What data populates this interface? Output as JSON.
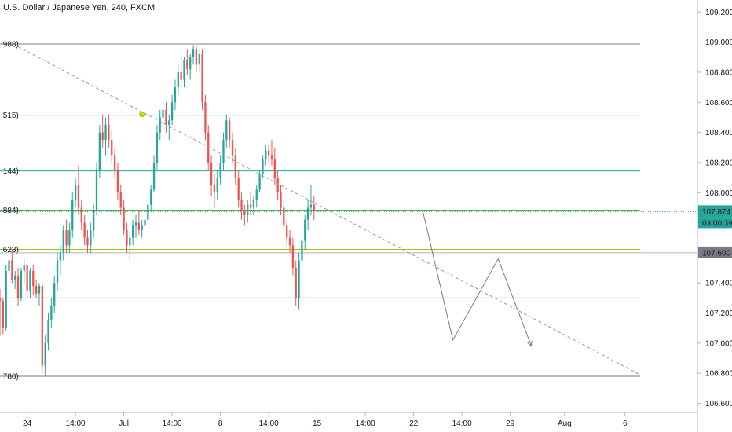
{
  "header": {
    "title": "U.S. Dollar / Japanese Yen, 240, FXCM"
  },
  "colors": {
    "up": "#26a69a",
    "down": "#ef5350",
    "grid": "#e6e6e6",
    "axis": "#b2b5be",
    "price_badge": "#26a69a",
    "level_badge": "#787b86"
  },
  "chart_data": {
    "type": "candlestick",
    "title": "U.S. Dollar / Japanese Yen, 240, FXCM",
    "ylim": [
      106.54,
      109.28
    ],
    "y_ticks": [
      {
        "v": 109.2,
        "label": "109.200"
      },
      {
        "v": 109.0,
        "label": "109.000"
      },
      {
        "v": 108.8,
        "label": "108.800"
      },
      {
        "v": 108.6,
        "label": "108.600"
      },
      {
        "v": 108.4,
        "label": "108.400"
      },
      {
        "v": 108.2,
        "label": "108.200"
      },
      {
        "v": 108.0,
        "label": "108.000"
      },
      {
        "v": 107.4,
        "label": "107.400"
      },
      {
        "v": 107.2,
        "label": "107.200"
      },
      {
        "v": 107.0,
        "label": "107.000"
      },
      {
        "v": 106.8,
        "label": "106.800"
      },
      {
        "v": 106.6,
        "label": "106.600"
      }
    ],
    "x_ticks": [
      {
        "i": 9,
        "label": "24"
      },
      {
        "i": 25,
        "label": "14:00"
      },
      {
        "i": 41,
        "label": "Jul"
      },
      {
        "i": 57,
        "label": "14:00"
      },
      {
        "i": 73,
        "label": "8"
      },
      {
        "i": 89,
        "label": "14:00"
      },
      {
        "i": 105,
        "label": "15"
      },
      {
        "i": 121,
        "label": "14:00"
      },
      {
        "i": 137,
        "label": "22"
      },
      {
        "i": 153,
        "label": "14:00"
      },
      {
        "i": 169,
        "label": "29"
      },
      {
        "i": 187,
        "label": "Aug"
      },
      {
        "i": 207,
        "label": "6"
      }
    ],
    "x_range": [
      0,
      231
    ],
    "levels": [
      {
        "name": "fib-108988",
        "v": 108.988,
        "label": ".988)",
        "color": "#787b86"
      },
      {
        "name": "fib-108515",
        "v": 108.515,
        "label": ".515)",
        "color": "#00bcd4"
      },
      {
        "name": "fib-108144",
        "v": 108.144,
        "label": ".144)",
        "color": "#26a69a"
      },
      {
        "name": "fib-107884",
        "v": 107.884,
        "label": ".884)",
        "color": "#4caf50"
      },
      {
        "name": "fib-107623",
        "v": 107.623,
        "label": ".623)",
        "color": "#9bc700"
      },
      {
        "name": "fib-107300",
        "v": 107.3,
        "label": "",
        "color": "#e53935"
      },
      {
        "name": "fib-106780",
        "v": 106.78,
        "label": ".780)",
        "color": "#787b86"
      }
    ],
    "level_x_end": 212,
    "extra_hline": {
      "v": 107.6,
      "color": "#b2b5be"
    },
    "current_price": {
      "v": 107.874,
      "label": "107.874",
      "countdown": "03:00:39"
    },
    "level_badge": {
      "v": 107.6,
      "label": "107.600"
    },
    "trendline": {
      "x0": 6,
      "y0": 108.97,
      "x1": 212,
      "y1": 106.79
    },
    "marker": {
      "i": 47,
      "v": 108.52
    },
    "projection": [
      {
        "i": 140,
        "v": 107.88
      },
      {
        "i": 150,
        "v": 107.02
      },
      {
        "i": 165,
        "v": 107.56
      },
      {
        "i": 176,
        "v": 106.98
      }
    ],
    "ohlc": [
      [
        107.3,
        107.36,
        107.05,
        107.28
      ],
      [
        107.28,
        107.3,
        107.06,
        107.1
      ],
      [
        107.1,
        107.52,
        107.08,
        107.48
      ],
      [
        107.48,
        107.58,
        107.4,
        107.55
      ],
      [
        107.55,
        107.62,
        107.4,
        107.42
      ],
      [
        107.42,
        107.48,
        107.36,
        107.45
      ],
      [
        107.45,
        107.5,
        107.25,
        107.3
      ],
      [
        107.3,
        107.5,
        107.28,
        107.48
      ],
      [
        107.48,
        107.56,
        107.4,
        107.52
      ],
      [
        107.52,
        107.56,
        107.3,
        107.35
      ],
      [
        107.35,
        107.5,
        107.3,
        107.48
      ],
      [
        107.48,
        107.52,
        107.32,
        107.38
      ],
      [
        107.38,
        107.42,
        107.3,
        107.33
      ],
      [
        107.33,
        107.4,
        107.25,
        107.38
      ],
      [
        107.38,
        107.4,
        106.8,
        106.85
      ],
      [
        106.85,
        107.05,
        106.78,
        107.0
      ],
      [
        107.0,
        107.2,
        106.95,
        107.15
      ],
      [
        107.15,
        107.3,
        107.1,
        107.25
      ],
      [
        107.25,
        107.45,
        107.2,
        107.4
      ],
      [
        107.4,
        107.6,
        107.35,
        107.55
      ],
      [
        107.55,
        107.65,
        107.45,
        107.6
      ],
      [
        107.6,
        107.78,
        107.55,
        107.75
      ],
      [
        107.75,
        107.82,
        107.6,
        107.65
      ],
      [
        107.65,
        107.8,
        107.6,
        107.75
      ],
      [
        107.75,
        108.0,
        107.7,
        107.95
      ],
      [
        107.95,
        108.1,
        107.9,
        108.05
      ],
      [
        108.05,
        108.18,
        107.85,
        107.9
      ],
      [
        107.9,
        107.95,
        107.75,
        107.8
      ],
      [
        107.8,
        107.85,
        107.65,
        107.7
      ],
      [
        107.7,
        107.75,
        107.6,
        107.65
      ],
      [
        107.65,
        107.8,
        107.6,
        107.75
      ],
      [
        107.75,
        107.92,
        107.7,
        107.88
      ],
      [
        107.88,
        108.2,
        107.85,
        108.15
      ],
      [
        108.15,
        108.45,
        108.1,
        108.4
      ],
      [
        108.4,
        108.52,
        108.3,
        108.35
      ],
      [
        108.35,
        108.5,
        108.25,
        108.45
      ],
      [
        108.45,
        108.52,
        108.3,
        108.35
      ],
      [
        108.35,
        108.42,
        108.2,
        108.25
      ],
      [
        108.25,
        108.3,
        108.1,
        108.15
      ],
      [
        108.15,
        108.2,
        107.95,
        108.0
      ],
      [
        108.0,
        108.05,
        107.85,
        107.9
      ],
      [
        107.9,
        107.95,
        107.72,
        107.75
      ],
      [
        107.75,
        107.8,
        107.6,
        107.65
      ],
      [
        107.65,
        107.75,
        107.55,
        107.7
      ],
      [
        107.7,
        107.82,
        107.65,
        107.78
      ],
      [
        107.78,
        107.85,
        107.7,
        107.8
      ],
      [
        107.8,
        107.88,
        107.72,
        107.75
      ],
      [
        107.75,
        107.82,
        107.7,
        107.78
      ],
      [
        107.78,
        107.85,
        107.74,
        107.82
      ],
      [
        107.82,
        107.95,
        107.8,
        107.92
      ],
      [
        107.92,
        108.05,
        107.88,
        108.02
      ],
      [
        108.02,
        108.25,
        108.0,
        108.2
      ],
      [
        108.2,
        108.45,
        108.15,
        108.4
      ],
      [
        108.4,
        108.55,
        108.35,
        108.5
      ],
      [
        108.5,
        108.6,
        108.42,
        108.55
      ],
      [
        108.55,
        108.6,
        108.4,
        108.45
      ],
      [
        108.45,
        108.52,
        108.35,
        108.48
      ],
      [
        108.48,
        108.65,
        108.45,
        108.6
      ],
      [
        108.6,
        108.75,
        108.55,
        108.7
      ],
      [
        108.7,
        108.85,
        108.65,
        108.8
      ],
      [
        108.8,
        108.9,
        108.7,
        108.75
      ],
      [
        108.75,
        108.9,
        108.7,
        108.88
      ],
      [
        108.88,
        108.95,
        108.78,
        108.82
      ],
      [
        108.82,
        108.92,
        108.75,
        108.9
      ],
      [
        108.9,
        108.98,
        108.85,
        108.95
      ],
      [
        108.95,
        108.98,
        108.8,
        108.85
      ],
      [
        108.85,
        108.95,
        108.8,
        108.92
      ],
      [
        108.92,
        108.95,
        108.55,
        108.6
      ],
      [
        108.6,
        108.65,
        108.35,
        108.4
      ],
      [
        108.4,
        108.45,
        108.15,
        108.2
      ],
      [
        108.2,
        108.25,
        107.98,
        108.05
      ],
      [
        108.05,
        108.12,
        107.9,
        108.0
      ],
      [
        108.0,
        108.15,
        107.95,
        108.1
      ],
      [
        108.1,
        108.25,
        108.05,
        108.2
      ],
      [
        108.2,
        108.4,
        108.15,
        108.35
      ],
      [
        108.35,
        108.52,
        108.3,
        108.48
      ],
      [
        108.48,
        108.5,
        108.3,
        108.35
      ],
      [
        108.35,
        108.4,
        108.2,
        108.25
      ],
      [
        108.25,
        108.3,
        108.05,
        108.1
      ],
      [
        108.1,
        108.15,
        107.9,
        107.95
      ],
      [
        107.95,
        108.0,
        107.82,
        107.88
      ],
      [
        107.88,
        107.92,
        107.78,
        107.85
      ],
      [
        107.85,
        107.95,
        107.8,
        107.92
      ],
      [
        107.92,
        108.0,
        107.85,
        107.9
      ],
      [
        107.9,
        107.98,
        107.85,
        107.95
      ],
      [
        107.95,
        108.05,
        107.9,
        108.02
      ],
      [
        108.02,
        108.15,
        108.0,
        108.12
      ],
      [
        108.12,
        108.25,
        108.1,
        108.22
      ],
      [
        108.22,
        108.32,
        108.18,
        108.28
      ],
      [
        108.28,
        108.32,
        108.2,
        108.25
      ],
      [
        108.25,
        108.35,
        108.18,
        108.22
      ],
      [
        108.22,
        108.3,
        108.05,
        108.1
      ],
      [
        108.1,
        108.15,
        107.95,
        108.0
      ],
      [
        108.0,
        108.05,
        107.85,
        107.9
      ],
      [
        107.9,
        107.95,
        107.75,
        107.78
      ],
      [
        107.78,
        107.82,
        107.65,
        107.7
      ],
      [
        107.7,
        107.75,
        107.6,
        107.65
      ],
      [
        107.65,
        107.7,
        107.45,
        107.5
      ],
      [
        107.5,
        107.55,
        107.25,
        107.3
      ],
      [
        107.3,
        107.6,
        107.22,
        107.55
      ],
      [
        107.55,
        107.72,
        107.5,
        107.68
      ],
      [
        107.68,
        107.85,
        107.62,
        107.82
      ],
      [
        107.82,
        107.95,
        107.75,
        107.9
      ],
      [
        107.9,
        108.05,
        107.85,
        107.92
      ],
      [
        107.92,
        107.98,
        107.82,
        107.88
      ]
    ],
    "ohlc_x_start": 0
  }
}
